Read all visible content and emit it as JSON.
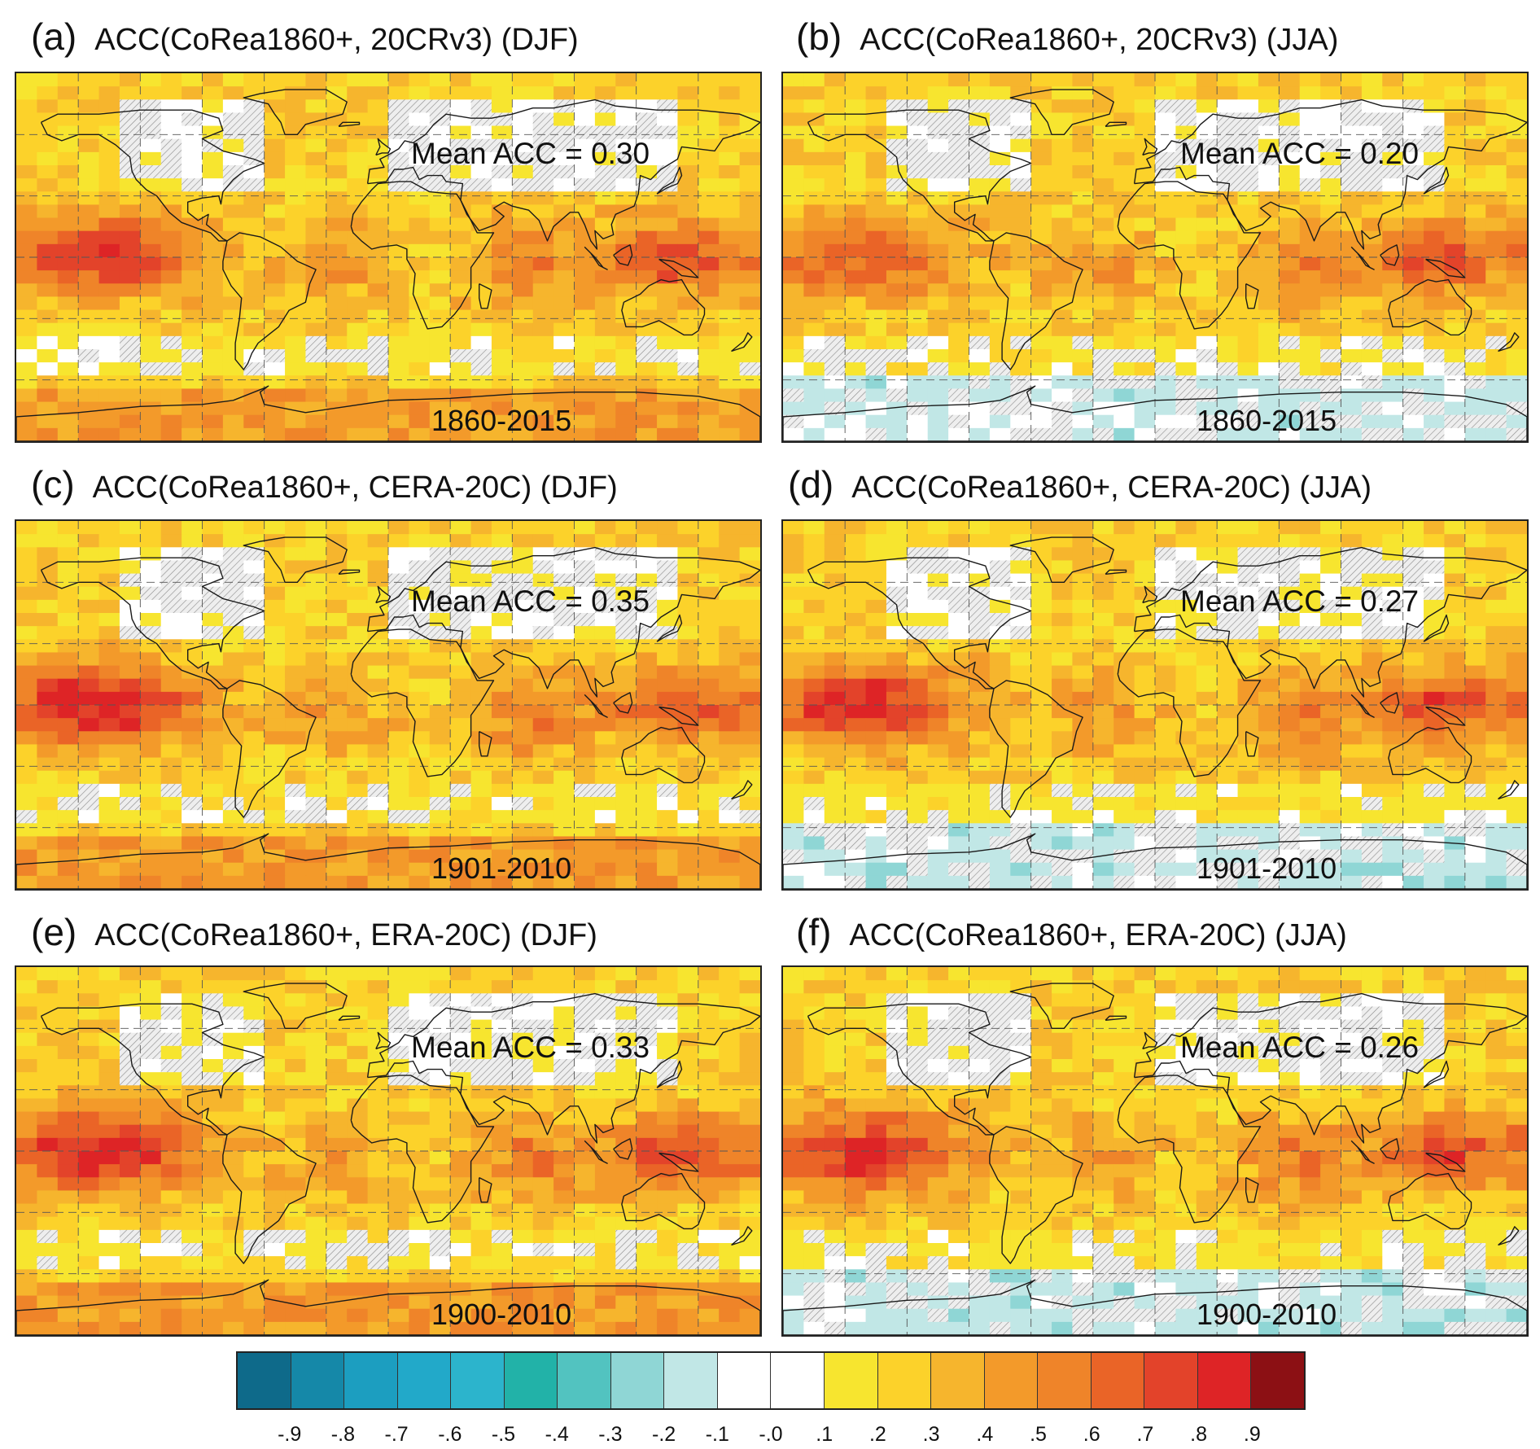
{
  "panels": [
    {
      "letter": "(a)",
      "title": "ACC(CoRea1860+, 20CRv3) (DJF)",
      "mean_acc": "Mean ACC = 0.30",
      "period": "1860-2015",
      "season": "DJF"
    },
    {
      "letter": "(b)",
      "title": "ACC(CoRea1860+, 20CRv3) (JJA)",
      "mean_acc": "Mean ACC = 0.20",
      "period": "1860-2015",
      "season": "JJA"
    },
    {
      "letter": "(c)",
      "title": "ACC(CoRea1860+, CERA-20C) (DJF)",
      "mean_acc": "Mean ACC = 0.35",
      "period": "1901-2010",
      "season": "DJF"
    },
    {
      "letter": "(d)",
      "title": "ACC(CoRea1860+, CERA-20C) (JJA)",
      "mean_acc": "Mean ACC = 0.27",
      "period": "1901-2010",
      "season": "JJA"
    },
    {
      "letter": "(e)",
      "title": "ACC(CoRea1860+, ERA-20C) (DJF)",
      "mean_acc": "Mean ACC = 0.33",
      "period": "1900-2010",
      "season": "DJF"
    },
    {
      "letter": "(f)",
      "title": "ACC(CoRea1860+, ERA-20C) (JJA)",
      "mean_acc": "Mean ACC = 0.26",
      "period": "1900-2010",
      "season": "JJA"
    }
  ],
  "colorbar": {
    "ticks": [
      "-.9",
      "-.8",
      "-.7",
      "-.6",
      "-.5",
      "-.4",
      "-.3",
      "-.2",
      "-.1",
      "-.0",
      ".1",
      ".2",
      ".3",
      ".4",
      ".5",
      ".6",
      ".7",
      ".8",
      ".9"
    ],
    "colors": [
      "#0e6a8a",
      "#1588a8",
      "#1c9ec0",
      "#22a9c9",
      "#2cb4cc",
      "#22b2a8",
      "#52c3c0",
      "#8fd6d5",
      "#c1e7e6",
      "#ffffff",
      "#ffffff",
      "#f7e52f",
      "#fcd22a",
      "#f6b52d",
      "#f39a2a",
      "#ef8429",
      "#ea6427",
      "#e3432a",
      "#de2426",
      "#8c1014"
    ]
  },
  "legend_colors": {
    "masked_hatch": "#d8d8d8",
    "weak_positive": "#f7e33a",
    "moderate_positive": "#f39a2a",
    "strong_positive": "#e3432a",
    "negative": "#8fd6d5"
  }
}
